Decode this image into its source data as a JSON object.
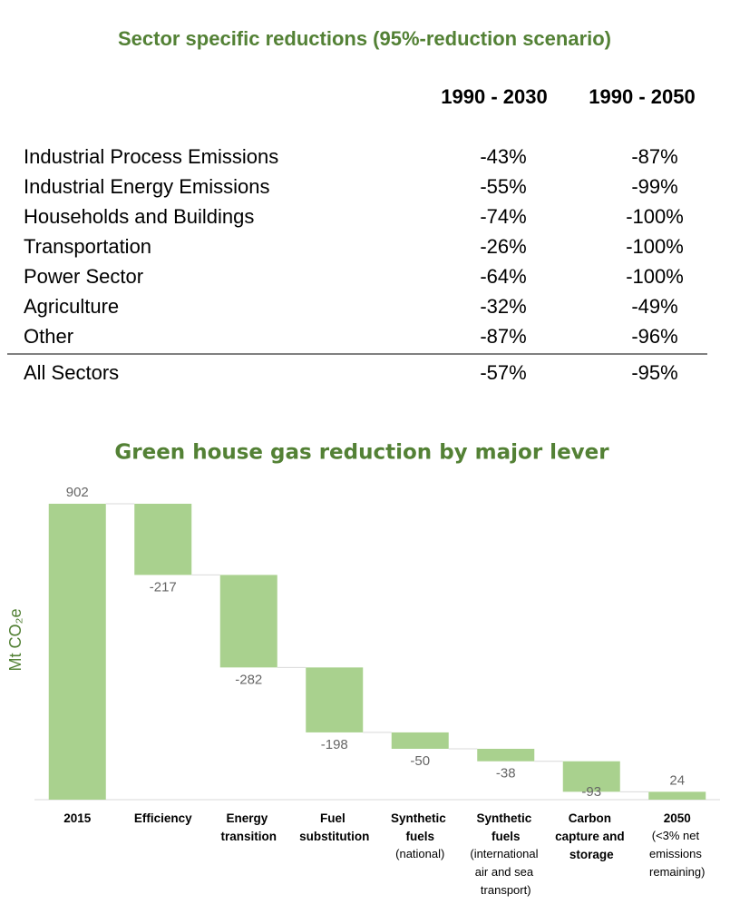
{
  "table": {
    "title": "Sector specific reductions (95%-reduction scenario)",
    "columns": [
      "1990 - 2030",
      "1990 - 2050"
    ],
    "rows": [
      [
        "Industrial Process Emissions",
        "-43%",
        "-87%"
      ],
      [
        "Industrial Energy Emissions",
        "-55%",
        "-99%"
      ],
      [
        "Households and Buildings",
        "-74%",
        "-100%"
      ],
      [
        "Transportation",
        "-26%",
        "-100%"
      ],
      [
        "Power Sector",
        "-64%",
        "-100%"
      ],
      [
        "Agriculture",
        "-32%",
        "-49%"
      ],
      [
        "Other",
        "-87%",
        "-96%"
      ]
    ],
    "total": [
      "All Sectors",
      "-57%",
      "-95%"
    ]
  },
  "chart_data": {
    "type": "waterfall",
    "title": "Green house gas reduction by major lever",
    "y_label": "Mt CO₂e",
    "categories": [
      "2015",
      "Efficiency",
      "Energy transition",
      "Fuel substitution",
      "Synthetic fuels",
      "Synthetic fuels",
      "Carbon capture and storage",
      "2050"
    ],
    "category_notes": [
      null,
      null,
      null,
      null,
      "(national)",
      "(international air and sea transport)",
      null,
      "(<3% net emissions remaining)"
    ],
    "values": [
      902,
      -217,
      -282,
      -198,
      -50,
      -38,
      -93,
      24
    ],
    "color": "#a9d18e",
    "ylim": [
      0,
      902
    ]
  }
}
